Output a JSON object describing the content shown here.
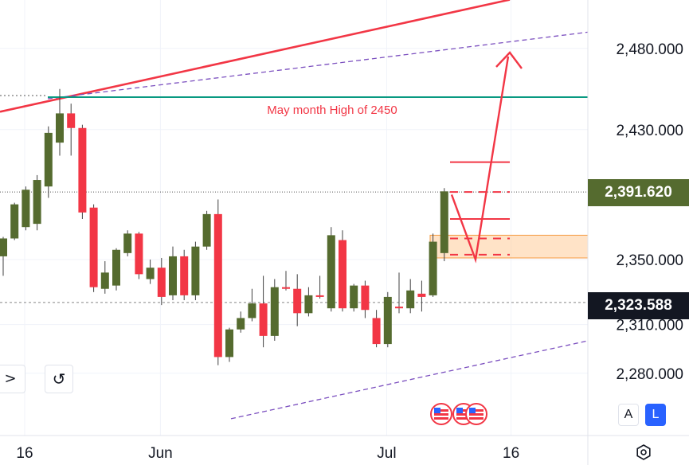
{
  "chart_data": {
    "type": "candlestick",
    "title": "",
    "y_axis": {
      "ticks": [
        2280,
        2310,
        2350,
        2430,
        2480
      ],
      "tick_labels": [
        "2,280.000",
        "2,310.000",
        "2,350.000",
        "2,430.000",
        "2,480.000"
      ],
      "ylim": [
        2263,
        2510
      ]
    },
    "x_axis": {
      "tick_labels": [
        {
          "label": "16",
          "index": 0
        },
        {
          "label": "Jun",
          "index": 12
        },
        {
          "label": "Jul",
          "index": 32
        },
        {
          "label": "16",
          "index": 43
        }
      ]
    },
    "candles": [
      {
        "o": 2352,
        "h": 2364,
        "l": 2340,
        "c": 2363
      },
      {
        "o": 2363,
        "h": 2385,
        "l": 2362,
        "c": 2384
      },
      {
        "o": 2370,
        "h": 2395,
        "l": 2368,
        "c": 2393
      },
      {
        "o": 2372,
        "h": 2402,
        "l": 2368,
        "c": 2399
      },
      {
        "o": 2395,
        "h": 2432,
        "l": 2388,
        "c": 2428
      },
      {
        "o": 2422,
        "h": 2455,
        "l": 2414,
        "c": 2440
      },
      {
        "o": 2440,
        "h": 2446,
        "l": 2414,
        "c": 2431
      },
      {
        "o": 2431,
        "h": 2433,
        "l": 2375,
        "c": 2379
      },
      {
        "o": 2382,
        "h": 2384,
        "l": 2330,
        "c": 2333
      },
      {
        "o": 2332,
        "h": 2349,
        "l": 2329,
        "c": 2342
      },
      {
        "o": 2334,
        "h": 2357,
        "l": 2331,
        "c": 2356
      },
      {
        "o": 2354,
        "h": 2368,
        "l": 2352,
        "c": 2366
      },
      {
        "o": 2366,
        "h": 2367,
        "l": 2338,
        "c": 2341
      },
      {
        "o": 2338,
        "h": 2350,
        "l": 2335,
        "c": 2345
      },
      {
        "o": 2345,
        "h": 2351,
        "l": 2322,
        "c": 2327
      },
      {
        "o": 2328,
        "h": 2358,
        "l": 2325,
        "c": 2352
      },
      {
        "o": 2352,
        "h": 2356,
        "l": 2325,
        "c": 2328
      },
      {
        "o": 2328,
        "h": 2361,
        "l": 2325,
        "c": 2358
      },
      {
        "o": 2358,
        "h": 2380,
        "l": 2356,
        "c": 2378
      },
      {
        "o": 2378,
        "h": 2387,
        "l": 2285,
        "c": 2290
      },
      {
        "o": 2290,
        "h": 2308,
        "l": 2287,
        "c": 2307
      },
      {
        "o": 2307,
        "h": 2318,
        "l": 2305,
        "c": 2314
      },
      {
        "o": 2314,
        "h": 2332,
        "l": 2312,
        "c": 2323
      },
      {
        "o": 2323,
        "h": 2340,
        "l": 2296,
        "c": 2303
      },
      {
        "o": 2303,
        "h": 2338,
        "l": 2300,
        "c": 2333
      },
      {
        "o": 2333,
        "h": 2343,
        "l": 2331,
        "c": 2332
      },
      {
        "o": 2332,
        "h": 2341,
        "l": 2309,
        "c": 2317
      },
      {
        "o": 2317,
        "h": 2333,
        "l": 2315,
        "c": 2328
      },
      {
        "o": 2328,
        "h": 2340,
        "l": 2326,
        "c": 2327
      },
      {
        "o": 2320,
        "h": 2370,
        "l": 2318,
        "c": 2365
      },
      {
        "o": 2362,
        "h": 2368,
        "l": 2318,
        "c": 2320
      },
      {
        "o": 2320,
        "h": 2335,
        "l": 2318,
        "c": 2334
      },
      {
        "o": 2334,
        "h": 2337,
        "l": 2314,
        "c": 2319
      },
      {
        "o": 2314,
        "h": 2319,
        "l": 2296,
        "c": 2298
      },
      {
        "o": 2298,
        "h": 2330,
        "l": 2296,
        "c": 2327
      },
      {
        "o": 2321,
        "h": 2342,
        "l": 2317,
        "c": 2320
      },
      {
        "o": 2320,
        "h": 2338,
        "l": 2317,
        "c": 2331
      },
      {
        "o": 2329,
        "h": 2337,
        "l": 2318,
        "c": 2327
      },
      {
        "o": 2328,
        "h": 2366,
        "l": 2327,
        "c": 2361
      },
      {
        "o": 2354,
        "h": 2394,
        "l": 2349,
        "c": 2392
      }
    ],
    "colors": {
      "up": "#556b2f",
      "down": "#f23645",
      "wick": "#404040"
    },
    "levels": [
      {
        "name": "last-price",
        "value": 2391.62,
        "label": "2,391.620",
        "color": "#556b2f"
      },
      {
        "name": "marker-price",
        "value": 2323.588,
        "label": "2,323.588",
        "color": "#131722"
      },
      {
        "name": "may-high",
        "value": 2450,
        "color": "#089981"
      }
    ],
    "annotations": [
      {
        "text": "May month High of 2450",
        "color": "#f23645"
      }
    ],
    "zone": {
      "from": 2351,
      "to": 2365,
      "color": "#ffcc99"
    },
    "target_ticks": [
      2410,
      2375,
      2363,
      2353
    ],
    "path": [
      2390,
      2350,
      2475
    ]
  },
  "controls": {
    "forward_label": ">",
    "reset_label": "↺",
    "auto_label": "A",
    "log_label": "L",
    "settings_icon": "settings-icon",
    "flags": [
      "us-flag-icon",
      "us-flag-icon",
      "us-flag-icon"
    ]
  }
}
